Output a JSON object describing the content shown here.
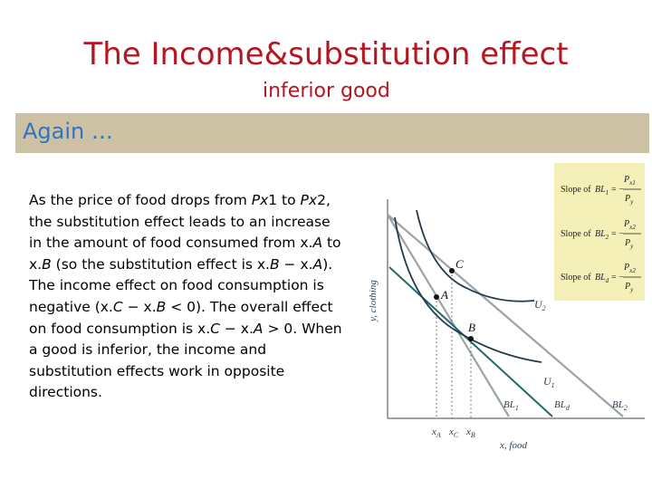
{
  "slide": {
    "title": "The Income&substitution effect",
    "subtitle": "inferior good",
    "banner": "Again …",
    "body_parts": [
      {
        "t": "As the price of food drops from ",
        "i": false
      },
      {
        "t": "Px",
        "i": true
      },
      {
        "t": "1 to ",
        "i": false
      },
      {
        "t": "Px",
        "i": true
      },
      {
        "t": "2, the substitution effect leads to an increase in the amount of food consumed from x.",
        "i": false
      },
      {
        "t": "A",
        "i": true
      },
      {
        "t": " to x.",
        "i": false
      },
      {
        "t": "B",
        "i": true
      },
      {
        "t": " (so the substitution effect is x.",
        "i": false
      },
      {
        "t": "B",
        "i": true
      },
      {
        "t": " − x.",
        "i": false
      },
      {
        "t": "A",
        "i": true
      },
      {
        "t": "). The income effect on food consumption is negative (x.",
        "i": false
      },
      {
        "t": "C",
        "i": true
      },
      {
        "t": " − x.",
        "i": false
      },
      {
        "t": "B",
        "i": true
      },
      {
        "t": " < 0). The overall effect on food consumption is x.",
        "i": false
      },
      {
        "t": "C",
        "i": true
      },
      {
        "t": " − x.",
        "i": false
      },
      {
        "t": "A",
        "i": true
      },
      {
        "t": " > 0. When a good is inferior, the income and substitution effects work in opposite directions.",
        "i": false
      }
    ]
  },
  "diagram": {
    "y_axis_label": "y, clothing",
    "x_axis_label": "x, food",
    "points": {
      "A": "A",
      "B": "B",
      "C": "C"
    },
    "x_ticks": {
      "xA": "x",
      "xA_sub": "A",
      "xC": "x",
      "xC_sub": "C",
      "xB": "x",
      "xB_sub": "B"
    },
    "curves": {
      "U1": "U",
      "U1_sub": "1",
      "U2": "U",
      "U2_sub": "2"
    },
    "budget_lines": {
      "BL1": "BL",
      "BL1_sub": "1",
      "BLd": "BL",
      "BLd_sub": "d",
      "BL2": "BL",
      "BL2_sub": "2"
    },
    "slope_panel": {
      "background": "#f5efb8",
      "rows": [
        {
          "label": "Slope of",
          "bl": "BL",
          "bl_sub": "1",
          "eq": "= −",
          "num": "P",
          "num_sub": "x1",
          "den": "P",
          "den_sub": "y"
        },
        {
          "label": "Slope of",
          "bl": "BL",
          "bl_sub": "2",
          "eq": "= −",
          "num": "P",
          "num_sub": "x2",
          "den": "P",
          "den_sub": "y"
        },
        {
          "label": "Slope of",
          "bl": "BL",
          "bl_sub": "d",
          "eq": "= −",
          "num": "P",
          "num_sub": "x2",
          "den": "P",
          "den_sub": "y"
        }
      ]
    },
    "colors": {
      "bl1": "#9aa3a8",
      "bl2": "#9aa3a8",
      "bld": "#1f6b6b",
      "curve": "#233a4a",
      "text": "#2c3e50"
    }
  }
}
